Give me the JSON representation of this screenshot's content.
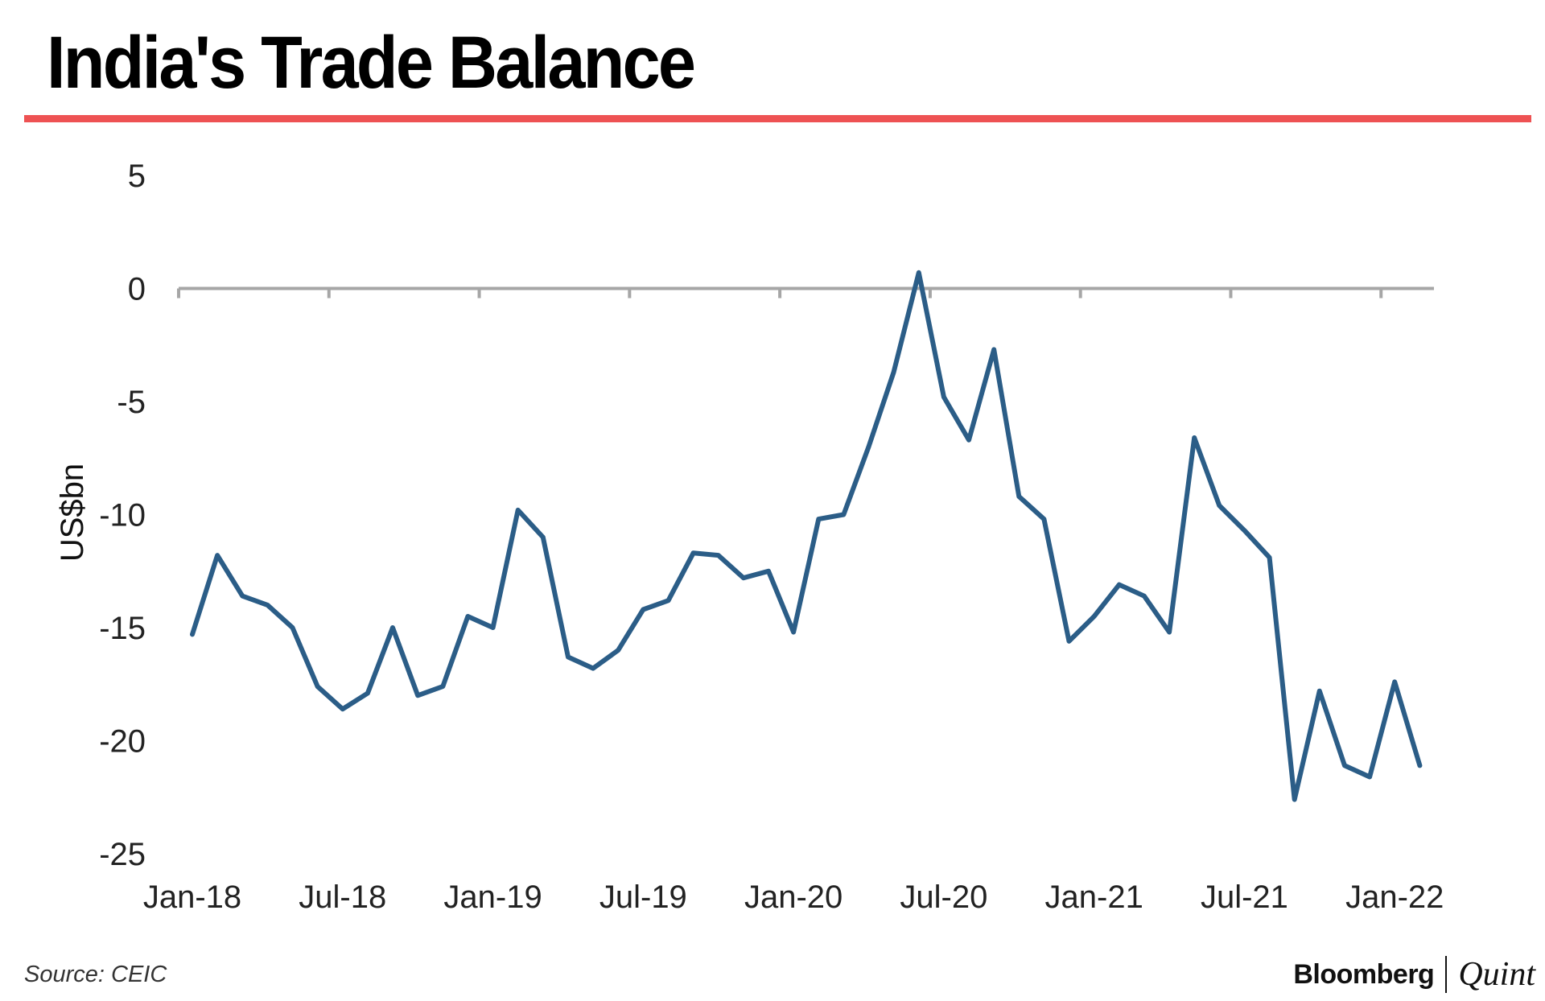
{
  "header": {
    "title": "India's Trade Balance",
    "rule_color": "#ee5253"
  },
  "footer": {
    "source": "Source: CEIC",
    "brand_primary": "Bloomberg",
    "brand_secondary": "Quint"
  },
  "chart_data": {
    "type": "line",
    "title": "India's Trade Balance",
    "xlabel": "",
    "ylabel": "US$bn",
    "ylim": [
      -25,
      5
    ],
    "yticks": [
      5,
      0,
      -5,
      -10,
      -15,
      -20,
      -25
    ],
    "xtick_labels": [
      "Jan-18",
      "Jul-18",
      "Jan-19",
      "Jul-19",
      "Jan-20",
      "Jul-20",
      "Jan-21",
      "Jul-21",
      "Jan-22"
    ],
    "grid": false,
    "legend": "none",
    "series_color": "#2b5d87",
    "axis_color": "#a6a6a6",
    "series": [
      {
        "x": [
          "Jan-18",
          "Feb-18",
          "Mar-18",
          "Apr-18",
          "May-18",
          "Jun-18",
          "Jul-18",
          "Aug-18",
          "Sep-18",
          "Oct-18",
          "Nov-18",
          "Dec-18",
          "Jan-19",
          "Feb-19",
          "Mar-19",
          "Apr-19",
          "May-19",
          "Jun-19",
          "Jul-19",
          "Aug-19",
          "Sep-19",
          "Oct-19",
          "Nov-19",
          "Dec-19",
          "Jan-20",
          "Feb-20",
          "Mar-20",
          "Apr-20",
          "May-20",
          "Jun-20",
          "Jul-20",
          "Aug-20",
          "Sep-20",
          "Oct-20",
          "Nov-20",
          "Dec-20",
          "Jan-21",
          "Feb-21",
          "Mar-21",
          "Apr-21",
          "May-21",
          "Jun-21",
          "Jul-21",
          "Aug-21",
          "Sep-21",
          "Oct-21",
          "Nov-21",
          "Dec-21",
          "Jan-22",
          "Feb-22"
        ],
        "values": [
          -15.3,
          -11.8,
          -13.6,
          -14.0,
          -15.0,
          -17.6,
          -18.6,
          -17.9,
          -15.0,
          -18.0,
          -17.6,
          -14.5,
          -15.0,
          -9.8,
          -11.0,
          -16.3,
          -16.8,
          -16.0,
          -14.2,
          -13.8,
          -11.7,
          -11.8,
          -12.8,
          -12.5,
          -15.2,
          -10.2,
          -10.0,
          -7.0,
          -3.7,
          0.7,
          -4.8,
          -6.7,
          -2.7,
          -9.2,
          -10.2,
          -15.6,
          -14.5,
          -13.1,
          -13.6,
          -15.2,
          -6.6,
          -9.6,
          -10.7,
          -11.9,
          -22.6,
          -17.8,
          -21.1,
          -21.6,
          -17.4,
          -21.1
        ]
      }
    ]
  }
}
